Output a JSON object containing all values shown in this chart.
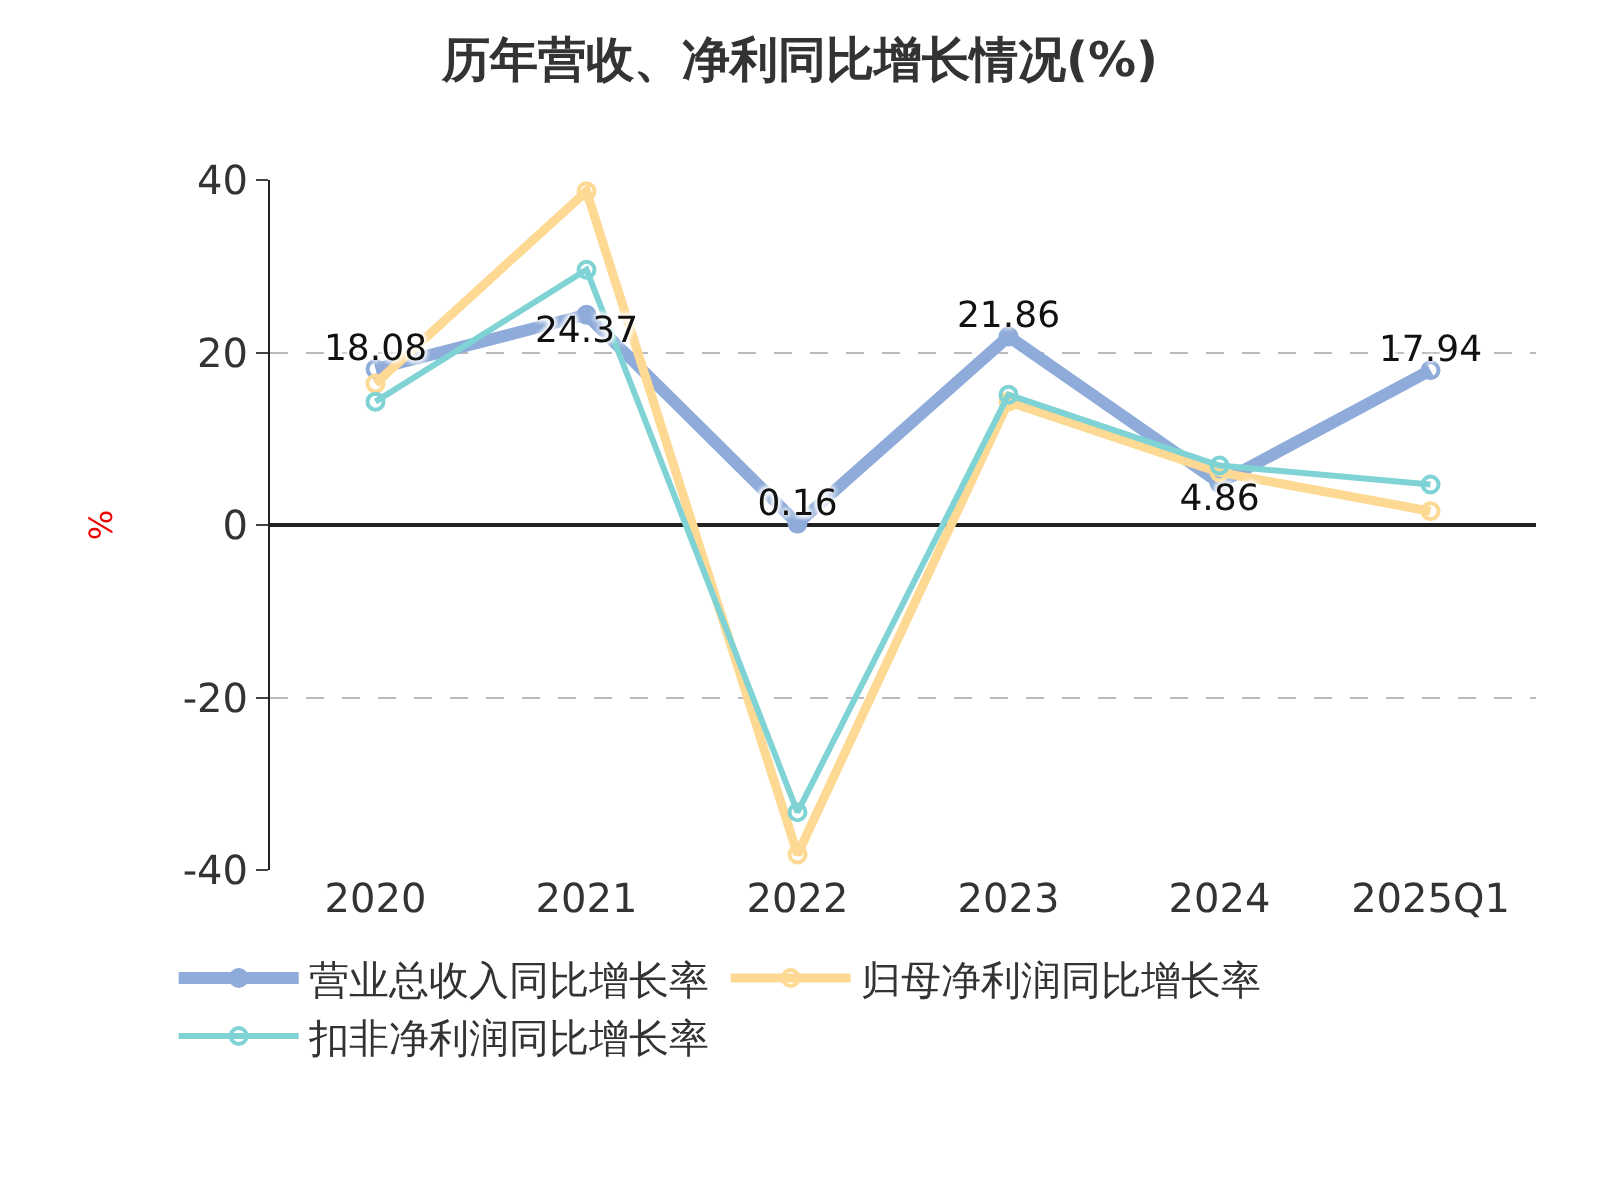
{
  "chart_data": {
    "type": "line",
    "title": "历年营收、净利同比增长情况(%)",
    "ylabel": "%",
    "categories": [
      "2020",
      "2021",
      "2022",
      "2023",
      "2024",
      "2025Q1"
    ],
    "series": [
      {
        "name": "营业总收入同比增长率",
        "color": "#8eabd9",
        "values": [
          18.08,
          24.37,
          0.16,
          21.86,
          4.86,
          17.94
        ],
        "value_labels": [
          "18.08",
          "24.37",
          "0.16",
          "21.86",
          "4.86",
          "17.94"
        ]
      },
      {
        "name": "归母净利润同比增长率",
        "color": "#fdd993",
        "values": [
          16.4,
          38.7,
          -38.2,
          14.3,
          6.1,
          1.6
        ]
      },
      {
        "name": "扣非净利润同比增长率",
        "color": "#7fd3d4",
        "values": [
          14.3,
          29.6,
          -33.3,
          15.1,
          6.9,
          4.7
        ]
      }
    ],
    "ylim": [
      -40,
      40
    ],
    "yticks": [
      -40,
      -20,
      0,
      20,
      40
    ],
    "grid": "y",
    "legend": "bottom",
    "marker": "circle",
    "line_style": "solid"
  }
}
